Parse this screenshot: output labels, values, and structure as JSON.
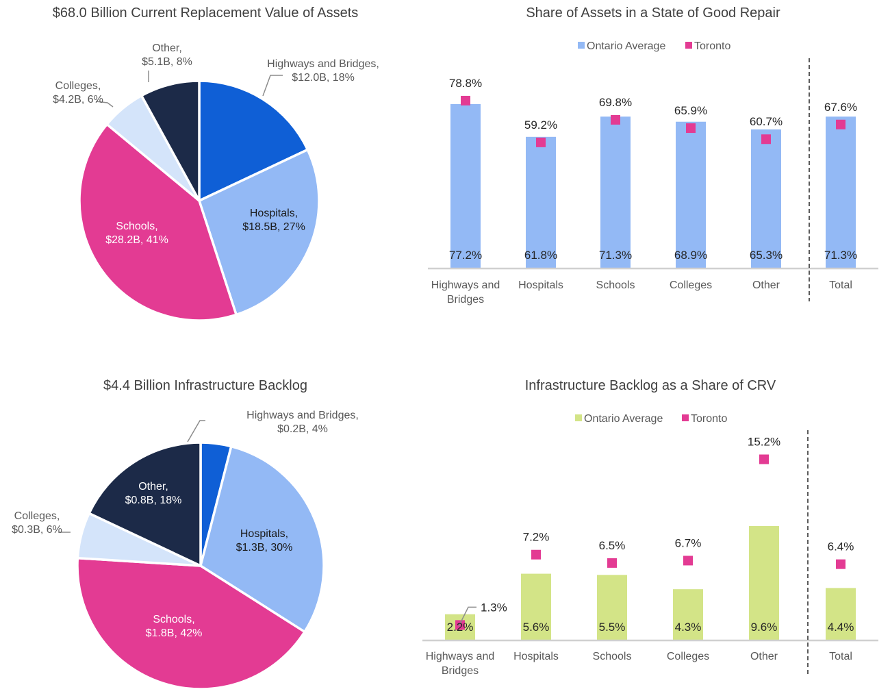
{
  "colors": {
    "highways": "#0f5fd6",
    "hospitals": "#93b9f5",
    "schools": "#e33b93",
    "colleges": "#d4e4fa",
    "other": "#1c2a48",
    "ontario_blue": "#93b9f5",
    "ontario_green": "#d3e487",
    "toronto": "#e33b93"
  },
  "chart_data": [
    {
      "id": "crv-pie",
      "type": "pie",
      "title": "$68.0 Billion Current Replacement Value of Assets",
      "slices": [
        {
          "name": "Highways and Bridges",
          "value": 12.0,
          "percent": 18,
          "line1": "Highways and Bridges,",
          "line2": "$12.0B, 18%",
          "color_key": "highways"
        },
        {
          "name": "Hospitals",
          "value": 18.5,
          "percent": 27,
          "line1": "Hospitals,",
          "line2": "$18.5B, 27%",
          "color_key": "hospitals"
        },
        {
          "name": "Schools",
          "value": 28.2,
          "percent": 41,
          "line1": "Schools,",
          "line2": "$28.2B, 41%",
          "color_key": "schools"
        },
        {
          "name": "Colleges",
          "value": 4.2,
          "percent": 6,
          "line1": "Colleges,",
          "line2": "$4.2B, 6%",
          "color_key": "colleges"
        },
        {
          "name": "Other",
          "value": 5.1,
          "percent": 8,
          "line1": "Other,",
          "line2": "$5.1B, 8%",
          "color_key": "other"
        }
      ]
    },
    {
      "id": "sogr-bar",
      "type": "bar",
      "title": "Share of Assets in a State of Good Repair",
      "legend": [
        "Ontario Average",
        "Toronto"
      ],
      "legend_position": "top",
      "categories": [
        "Highways and Bridges",
        "Hospitals",
        "Schools",
        "Colleges",
        "Other",
        "Total"
      ],
      "series": [
        {
          "name": "Ontario Average",
          "kind": "bar",
          "color_key": "ontario_blue",
          "values": [
            77.2,
            61.8,
            71.3,
            68.9,
            65.3,
            71.3
          ]
        },
        {
          "name": "Toronto",
          "kind": "marker",
          "color_key": "toronto",
          "values": [
            78.8,
            59.2,
            69.8,
            65.9,
            60.7,
            67.6
          ]
        }
      ],
      "unit": "%",
      "ylim": [
        0,
        100
      ],
      "separator_before": "Total"
    },
    {
      "id": "backlog-pie",
      "type": "pie",
      "title": "$4.4 Billion Infrastructure Backlog",
      "slices": [
        {
          "name": "Highways and Bridges",
          "value": 0.2,
          "percent": 4,
          "line1": "Highways and Bridges,",
          "line2": "$0.2B, 4%",
          "color_key": "highways"
        },
        {
          "name": "Hospitals",
          "value": 1.3,
          "percent": 30,
          "line1": "Hospitals,",
          "line2": "$1.3B, 30%",
          "color_key": "hospitals"
        },
        {
          "name": "Schools",
          "value": 1.8,
          "percent": 42,
          "line1": "Schools,",
          "line2": "$1.8B, 42%",
          "color_key": "schools"
        },
        {
          "name": "Colleges",
          "value": 0.3,
          "percent": 6,
          "line1": "Colleges,",
          "line2": "$0.3B, 6%",
          "color_key": "colleges"
        },
        {
          "name": "Other",
          "value": 0.8,
          "percent": 18,
          "line1": "Other,",
          "line2": "$0.8B, 18%",
          "color_key": "other"
        }
      ]
    },
    {
      "id": "backlog-bar",
      "type": "bar",
      "title": "Infrastructure Backlog as a Share of CRV",
      "legend": [
        "Ontario Average",
        "Toronto"
      ],
      "legend_position": "top",
      "categories": [
        "Highways and Bridges",
        "Hospitals",
        "Schools",
        "Colleges",
        "Other",
        "Total"
      ],
      "series": [
        {
          "name": "Ontario Average",
          "kind": "bar",
          "color_key": "ontario_green",
          "values": [
            2.2,
            5.6,
            5.5,
            4.3,
            9.6,
            4.4
          ]
        },
        {
          "name": "Toronto",
          "kind": "marker",
          "color_key": "toronto",
          "values": [
            1.3,
            7.2,
            6.5,
            6.7,
            15.2,
            6.4
          ]
        }
      ],
      "unit": "%",
      "ylim": [
        0,
        17
      ],
      "separator_before": "Total"
    }
  ]
}
